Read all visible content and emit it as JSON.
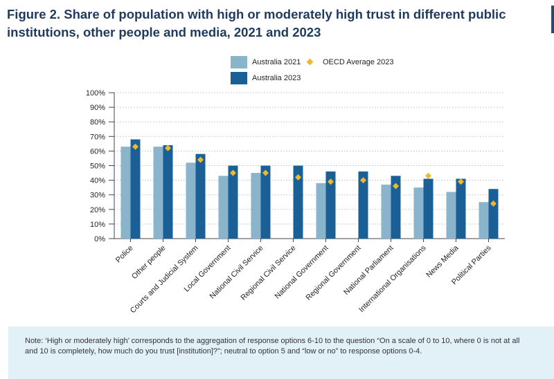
{
  "figure": {
    "title_line1": "Figure 2. Share of population with high or moderately high trust in different public",
    "title_line2": "institutions, other people and media, 2021 and 2023"
  },
  "legend": {
    "australia_2021": "Australia 2021",
    "australia_2023": "Australia 2023",
    "oecd_2023": "OECD Average 2023"
  },
  "colors": {
    "australia_2021": "#8ab3cc",
    "australia_2023": "#1a5f96",
    "oecd_2023": "#f0b92c",
    "grid": "#bdbdbd",
    "note_background": "#e2f0f8"
  },
  "chart_data": {
    "type": "bar",
    "title": "Figure 2. Share of population with high or moderately high trust in different public institutions, other people and media, 2021 and 2023",
    "xlabel": "",
    "ylabel": "",
    "ylim": [
      0,
      100
    ],
    "y_ticks": [
      "0%",
      "10%",
      "20%",
      "30%",
      "40%",
      "50%",
      "60%",
      "70%",
      "80%",
      "90%",
      "100%"
    ],
    "grid": true,
    "legend_position": "top",
    "categories": [
      "Police",
      "Other people",
      "Courts and Judicial System",
      "Local Government",
      "National Civil Service",
      "Regional Civil Service",
      "National Government",
      "Regional Government",
      "National Parliament",
      "International Organisations",
      "News Media",
      "Political Parties"
    ],
    "series": [
      {
        "name": "Australia 2021",
        "kind": "bar",
        "values": [
          63,
          63,
          52,
          43,
          45,
          null,
          38,
          null,
          37,
          35,
          32,
          25
        ]
      },
      {
        "name": "Australia 2023",
        "kind": "bar",
        "values": [
          68,
          64,
          58,
          50,
          50,
          50,
          46,
          46,
          43,
          41,
          41,
          34
        ]
      },
      {
        "name": "OECD Average 2023",
        "kind": "marker",
        "values": [
          63,
          62,
          54,
          45,
          45,
          42,
          39,
          40,
          36,
          43,
          39,
          24
        ]
      }
    ]
  },
  "note": {
    "line1": "Note: ‘High or moderately high’ corresponds to the aggregation of response options 6-10 to the question “On a scale of 0 to 10, where 0 is not at all",
    "line2": "and 10 is completely, how much do you trust [institution]?”; neutral to option 5 and “low or no” to response options 0-4."
  }
}
